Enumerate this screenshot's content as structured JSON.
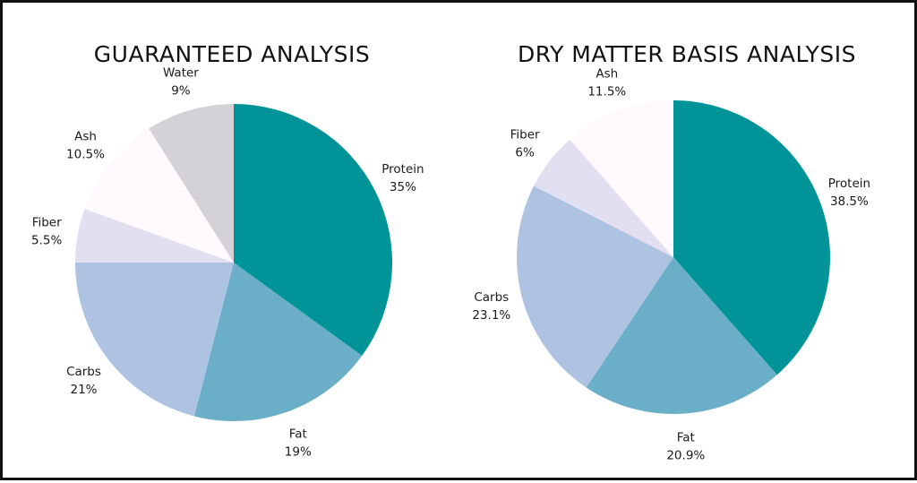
{
  "chart_data": [
    {
      "type": "pie",
      "title": "GUARANTEED ANALYSIS",
      "slices": [
        {
          "label": "Protein",
          "value_label": "35%",
          "value": 35,
          "color": "#009499"
        },
        {
          "label": "Fat",
          "value_label": "19%",
          "value": 19,
          "color": "#6aaec8"
        },
        {
          "label": "Carbs",
          "value_label": "21%",
          "value": 21,
          "color": "#aec2e2"
        },
        {
          "label": "Fiber",
          "value_label": "5.5%",
          "value": 5.5,
          "color": "#e2dff1"
        },
        {
          "label": "Ash",
          "value_label": "10.5%",
          "value": 10.5,
          "color": "#fdf9fd"
        },
        {
          "label": "Water",
          "value_label": "9%",
          "value": 9,
          "color": "#d4d2d7"
        }
      ]
    },
    {
      "type": "pie",
      "title": "DRY MATTER BASIS ANALYSIS",
      "slices": [
        {
          "label": "Protein",
          "value_label": "38.5%",
          "value": 38.5,
          "color": "#009499"
        },
        {
          "label": "Fat",
          "value_label": "20.9%",
          "value": 20.9,
          "color": "#6aaec8"
        },
        {
          "label": "Carbs",
          "value_label": "23.1%",
          "value": 23.1,
          "color": "#aec2e2"
        },
        {
          "label": "Fiber",
          "value_label": "6%",
          "value": 6,
          "color": "#e2dff1"
        },
        {
          "label": "Ash",
          "value_label": "11.5%",
          "value": 11.5,
          "color": "#fdf9fd"
        }
      ]
    }
  ]
}
